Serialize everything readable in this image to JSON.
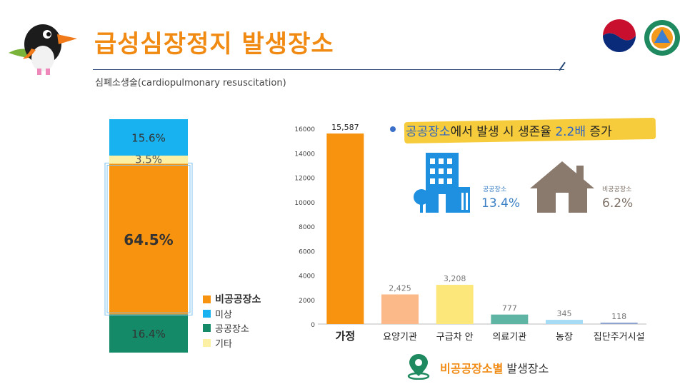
{
  "header": {
    "title": "급성심장정지 발생장소",
    "subtitle": "심폐소생술(cardiopulmonary resuscitation)"
  },
  "colors": {
    "orange": "#f7930f",
    "blue": "#19b2f0",
    "green": "#158a68",
    "cream": "#fbf0a4",
    "title": "#f08a12"
  },
  "chart_data": [
    {
      "type": "bar",
      "stacked": true,
      "title": "",
      "segments": [
        {
          "name": "공공장소",
          "value": 16.4,
          "label": "16.4%",
          "color": "#158a68"
        },
        {
          "name": "비공공장소",
          "value": 64.5,
          "label": "64.5%",
          "color": "#f7930f"
        },
        {
          "name": "기타",
          "value": 3.5,
          "label": "3.5%",
          "color": "#fbf0a4"
        },
        {
          "name": "미상",
          "value": 15.6,
          "label": "15.6%",
          "color": "#19b2f0"
        }
      ],
      "legend": [
        {
          "name": "비공공장소",
          "color": "#f7930f"
        },
        {
          "name": "미상",
          "color": "#19b2f0"
        },
        {
          "name": "공공장소",
          "color": "#158a68"
        },
        {
          "name": "기타",
          "color": "#fbf0a4"
        }
      ],
      "legend_position": "right"
    },
    {
      "type": "bar",
      "title": "비공공장소별 발생장소",
      "categories": [
        "가정",
        "요양기관",
        "구급차 안",
        "의료기관",
        "농장",
        "집단주거시설"
      ],
      "values": [
        15587,
        2425,
        3208,
        777,
        345,
        118
      ],
      "value_labels": [
        "15,587",
        "2,425",
        "3,208",
        "777",
        "345",
        "118"
      ],
      "colors": [
        "#f7930f",
        "#fbb98a",
        "#fbe77a",
        "#5fb5a4",
        "#a6dbf6",
        "#8fa4cf"
      ],
      "yticks": [
        0,
        2000,
        4000,
        6000,
        8000,
        10000,
        12000,
        14000,
        16000
      ],
      "ylim": [
        0,
        16000
      ],
      "grid": false
    }
  ],
  "highlight": {
    "prefix": "공공장소",
    "middle": "에서 발생 시 생존율 ",
    "accent": "2.2배",
    "suffix": " 증가"
  },
  "survival": {
    "public_label": "공공장소",
    "public_value": "13.4%",
    "nonpublic_label": "비공공장소",
    "nonpublic_value": "6.2%"
  },
  "footer": {
    "label_accent": "비공공장소별",
    "label_rest": " 발생장소"
  },
  "icons": [
    "mascot-bird-icon",
    "government-emblem-icon",
    "fire-agency-emblem-icon",
    "building-icon",
    "house-icon",
    "location-pin-icon"
  ]
}
